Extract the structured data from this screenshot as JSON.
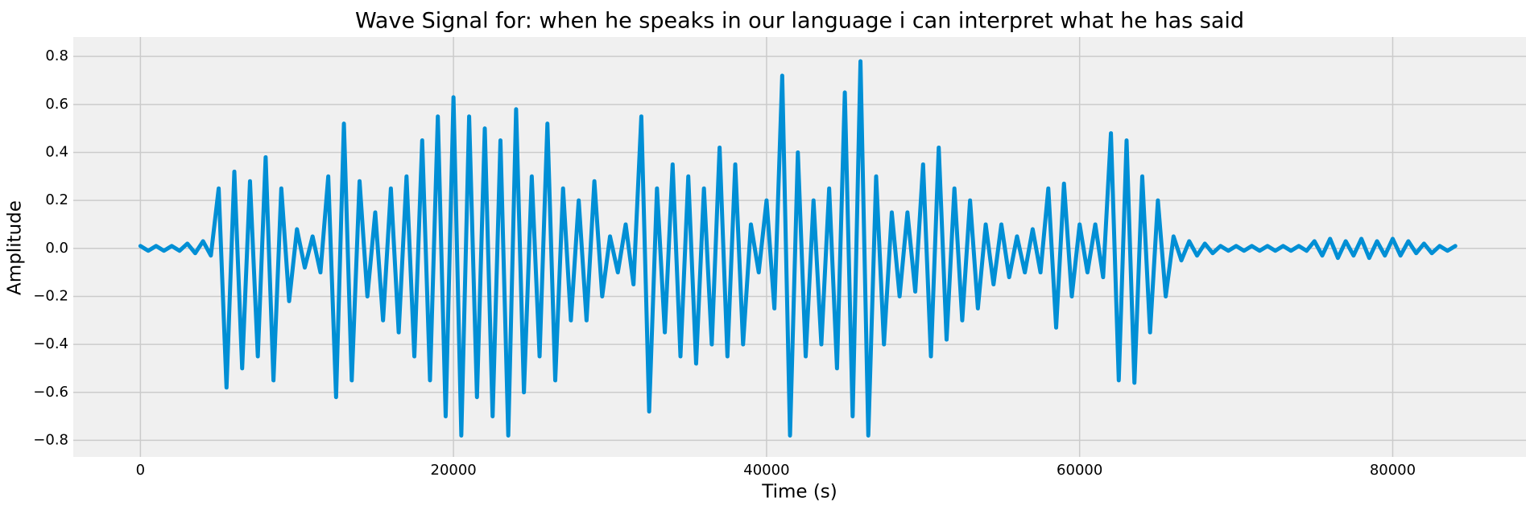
{
  "chart_data": {
    "type": "line",
    "title": "Wave Signal for: when he speaks in our language i can interpret what he has said",
    "xlabel": "Time (s)",
    "ylabel": "Amplitude",
    "x": [
      0,
      500,
      1000,
      1500,
      2000,
      2500,
      3000,
      3500,
      4000,
      4500,
      5000,
      5500,
      6000,
      6500,
      7000,
      7500,
      8000,
      8500,
      9000,
      9500,
      10000,
      10500,
      11000,
      11500,
      12000,
      12500,
      13000,
      13500,
      14000,
      14500,
      15000,
      15500,
      16000,
      16500,
      17000,
      17500,
      18000,
      18500,
      19000,
      19500,
      20000,
      20500,
      21000,
      21500,
      22000,
      22500,
      23000,
      23500,
      24000,
      24500,
      25000,
      25500,
      26000,
      26500,
      27000,
      27500,
      28000,
      28500,
      29000,
      29500,
      30000,
      30500,
      31000,
      31500,
      32000,
      32500,
      33000,
      33500,
      34000,
      34500,
      35000,
      35500,
      36000,
      36500,
      37000,
      37500,
      38000,
      38500,
      39000,
      39500,
      40000,
      40500,
      41000,
      41500,
      42000,
      42500,
      43000,
      43500,
      44000,
      44500,
      45000,
      45500,
      46000,
      46500,
      47000,
      47500,
      48000,
      48500,
      49000,
      49500,
      50000,
      50500,
      51000,
      51500,
      52000,
      52500,
      53000,
      53500,
      54000,
      54500,
      55000,
      55500,
      56000,
      56500,
      57000,
      57500,
      58000,
      58500,
      59000,
      59500,
      60000,
      60500,
      61000,
      61500,
      62000,
      62500,
      63000,
      63500,
      64000,
      64500,
      65000,
      65500,
      66000,
      66500,
      67000,
      67500,
      68000,
      68500,
      69000,
      69500,
      70000,
      70500,
      71000,
      71500,
      72000,
      72500,
      73000,
      73500,
      74000,
      74500,
      75000,
      75500,
      76000,
      76500,
      77000,
      77500,
      78000,
      78500,
      79000,
      79500,
      80000,
      80500,
      81000,
      81500,
      82000,
      82500,
      83000,
      83500,
      84000
    ],
    "series": [
      {
        "color": "#008fd5",
        "values": [
          0.01,
          -0.01,
          0.01,
          -0.01,
          0.01,
          -0.01,
          0.02,
          -0.02,
          0.03,
          -0.03,
          0.25,
          -0.58,
          0.32,
          -0.5,
          0.28,
          -0.45,
          0.38,
          -0.55,
          0.25,
          -0.22,
          0.08,
          -0.08,
          0.05,
          -0.1,
          0.3,
          -0.62,
          0.52,
          -0.55,
          0.28,
          -0.2,
          0.15,
          -0.3,
          0.25,
          -0.35,
          0.3,
          -0.45,
          0.45,
          -0.55,
          0.55,
          -0.7,
          0.63,
          -0.78,
          0.55,
          -0.62,
          0.5,
          -0.7,
          0.45,
          -0.78,
          0.58,
          -0.6,
          0.3,
          -0.45,
          0.52,
          -0.55,
          0.25,
          -0.3,
          0.2,
          -0.3,
          0.28,
          -0.2,
          0.05,
          -0.1,
          0.1,
          -0.15,
          0.55,
          -0.68,
          0.25,
          -0.35,
          0.35,
          -0.45,
          0.3,
          -0.48,
          0.25,
          -0.4,
          0.42,
          -0.45,
          0.35,
          -0.4,
          0.1,
          -0.1,
          0.2,
          -0.25,
          0.72,
          -0.78,
          0.4,
          -0.45,
          0.2,
          -0.4,
          0.25,
          -0.5,
          0.65,
          -0.7,
          0.78,
          -0.78,
          0.3,
          -0.4,
          0.15,
          -0.2,
          0.15,
          -0.18,
          0.35,
          -0.45,
          0.42,
          -0.38,
          0.25,
          -0.3,
          0.2,
          -0.25,
          0.1,
          -0.15,
          0.1,
          -0.12,
          0.05,
          -0.1,
          0.08,
          -0.1,
          0.25,
          -0.33,
          0.27,
          -0.2,
          0.1,
          -0.1,
          0.1,
          -0.12,
          0.48,
          -0.55,
          0.45,
          -0.56,
          0.3,
          -0.35,
          0.2,
          -0.2,
          0.05,
          -0.05,
          0.03,
          -0.03,
          0.02,
          -0.02,
          0.01,
          -0.01,
          0.01,
          -0.01,
          0.01,
          -0.01,
          0.01,
          -0.01,
          0.01,
          -0.01,
          0.01,
          -0.01,
          0.03,
          -0.03,
          0.04,
          -0.04,
          0.03,
          -0.03,
          0.04,
          -0.04,
          0.03,
          -0.03,
          0.04,
          -0.03,
          0.03,
          -0.02,
          0.02,
          -0.02,
          0.01,
          -0.01,
          0.01
        ]
      }
    ],
    "xlim": [
      -4289,
      88516
    ],
    "xticks": [
      0,
      20000,
      40000,
      60000,
      80000
    ],
    "ylim": [
      -0.869,
      0.881
    ],
    "yticks": [
      {
        "value": -0.8,
        "label": "−0.8"
      },
      {
        "value": -0.6,
        "label": "−0.6"
      },
      {
        "value": -0.4,
        "label": "−0.4"
      },
      {
        "value": -0.2,
        "label": "−0.2"
      },
      {
        "value": 0,
        "label": "0.0"
      },
      0.2,
      0.4,
      0.6,
      0.8
    ],
    "grid": true
  }
}
